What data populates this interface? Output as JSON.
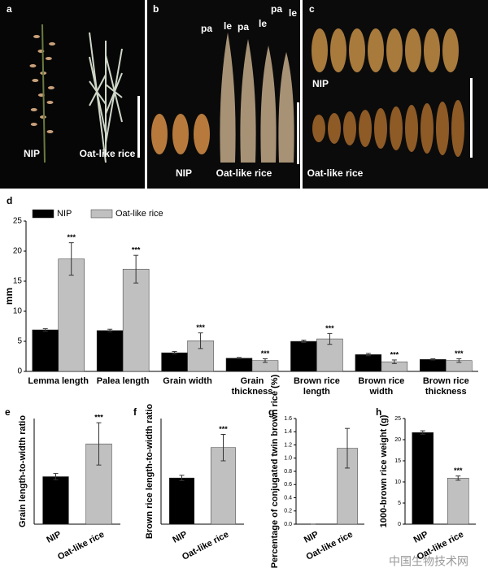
{
  "panels": [
    {
      "label": "a",
      "texts": [
        "NIP",
        "Oat-like rice"
      ]
    },
    {
      "label": "b",
      "texts": [
        "pa",
        "le",
        "pa",
        "le",
        "pa",
        "le",
        "NIP",
        "Oat-like rice"
      ]
    },
    {
      "label": "c",
      "texts": [
        "NIP",
        "Oat-like rice"
      ]
    }
  ],
  "watermark": "中国生物技术网",
  "chart_data": [
    {
      "type": "bar",
      "label": "d",
      "ylabel": "mm",
      "categories": [
        "Lemma length",
        "Palea length",
        "Grain width",
        "Grain thickness",
        "Brown rice length",
        "Brown rice  width",
        "Brown rice thickness"
      ],
      "series": [
        {
          "name": "NIP",
          "color": "#000000",
          "values": [
            6.9,
            6.8,
            3.1,
            2.2,
            5.0,
            2.8,
            2.0
          ],
          "errors": [
            0.2,
            0.2,
            0.2,
            0.1,
            0.2,
            0.2,
            0.1
          ]
        },
        {
          "name": "Oat-like rice",
          "color": "#c0c0c0",
          "values": [
            18.7,
            17.0,
            5.1,
            1.8,
            5.4,
            1.6,
            1.8
          ],
          "errors": [
            2.7,
            2.3,
            1.3,
            0.3,
            0.9,
            0.3,
            0.3
          ],
          "annotations": [
            "***",
            "***",
            "***",
            "***",
            "***",
            "***",
            "***"
          ]
        }
      ],
      "ylim": [
        0,
        25
      ],
      "yticks": [
        0,
        5,
        10,
        15,
        20,
        25
      ],
      "legend": "top-left"
    },
    {
      "type": "bar",
      "label": "e",
      "ylabel": "Grain length-to-width ratio",
      "categories": [
        "NIP",
        "Oat-like rice"
      ],
      "values": [
        2.25,
        3.8
      ],
      "errors": [
        0.15,
        1.0
      ],
      "colors": [
        "#000000",
        "#c0c0c0"
      ],
      "annotations": [
        null,
        "***"
      ],
      "ylim": [
        0,
        5
      ]
    },
    {
      "type": "bar",
      "label": "f",
      "ylabel": "Brown rice length-to-width ratio",
      "categories": [
        "NIP",
        "Oat-like rice"
      ],
      "values": [
        1.75,
        2.9
      ],
      "errors": [
        0.1,
        0.5
      ],
      "colors": [
        "#000000",
        "#c0c0c0"
      ],
      "annotations": [
        null,
        "***"
      ],
      "ylim": [
        0,
        4
      ]
    },
    {
      "type": "bar",
      "label": "g",
      "ylabel": "Percentage of conjugated twin brown rice (%)",
      "categories": [
        "NIP",
        "Oat-like rice"
      ],
      "values": [
        0,
        1.15
      ],
      "errors": [
        0,
        0.3
      ],
      "colors": [
        "#000000",
        "#c0c0c0"
      ],
      "ylim": [
        0,
        1.6
      ],
      "yticks": [
        {
          "value": 0,
          "label": "0.0"
        },
        0.2,
        0.4,
        0.6,
        0.8,
        {
          "value": 1,
          "label": "1.0"
        },
        1.2,
        1.4,
        1.6
      ]
    },
    {
      "type": "bar",
      "label": "h",
      "ylabel": "1000-brown rice weight (g)",
      "categories": [
        "NIP",
        "Oat-like rice"
      ],
      "values": [
        21.7,
        10.9
      ],
      "errors": [
        0.4,
        0.5
      ],
      "colors": [
        "#000000",
        "#c0c0c0"
      ],
      "annotations": [
        null,
        "***"
      ],
      "ylim": [
        0,
        25
      ],
      "yticks": [
        0,
        5,
        10,
        15,
        20,
        25
      ]
    }
  ]
}
